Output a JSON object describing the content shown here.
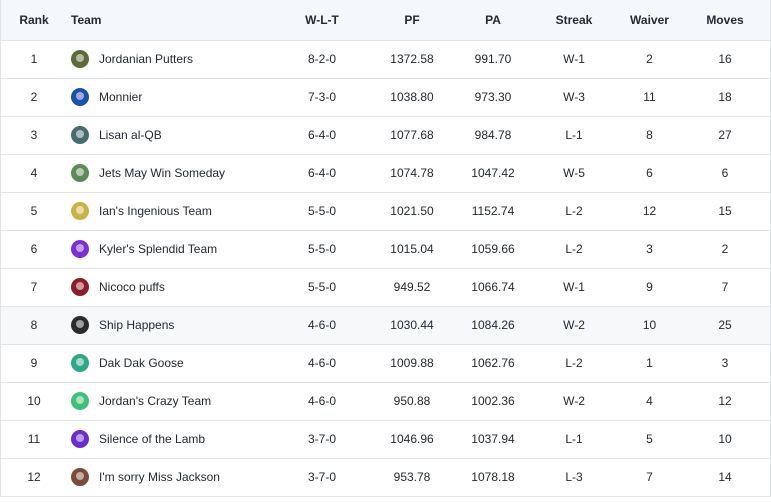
{
  "headers": {
    "rank": "Rank",
    "team": "Team",
    "wlt": "W-L-T",
    "pf": "PF",
    "pa": "PA",
    "streak": "Streak",
    "waiver": "Waiver",
    "moves": "Moves"
  },
  "rows": [
    {
      "rank": "1",
      "team": "Jordanian Putters",
      "wlt": "8-2-0",
      "pf": "1372.58",
      "pa": "991.70",
      "streak": "W-1",
      "waiver": "2",
      "moves": "16",
      "avatar_color": "#5b6b3a"
    },
    {
      "rank": "2",
      "team": "Monnier",
      "wlt": "7-3-0",
      "pf": "1038.80",
      "pa": "973.30",
      "streak": "W-3",
      "waiver": "11",
      "moves": "18",
      "avatar_color": "#1f4fa8"
    },
    {
      "rank": "3",
      "team": "Lisan al-QB",
      "wlt": "6-4-0",
      "pf": "1077.68",
      "pa": "984.78",
      "streak": "L-1",
      "waiver": "8",
      "moves": "27",
      "avatar_color": "#4a6a6e"
    },
    {
      "rank": "4",
      "team": "Jets May Win Someday",
      "wlt": "6-4-0",
      "pf": "1074.78",
      "pa": "1047.42",
      "streak": "W-5",
      "waiver": "6",
      "moves": "6",
      "avatar_color": "#5e8a5a"
    },
    {
      "rank": "5",
      "team": "Ian's Ingenious Team",
      "wlt": "5-5-0",
      "pf": "1021.50",
      "pa": "1152.74",
      "streak": "L-2",
      "waiver": "12",
      "moves": "15",
      "avatar_color": "#c9b347"
    },
    {
      "rank": "6",
      "team": "Kyler's Splendid Team",
      "wlt": "5-5-0",
      "pf": "1015.04",
      "pa": "1059.66",
      "streak": "L-2",
      "waiver": "3",
      "moves": "2",
      "avatar_color": "#7b2fd0"
    },
    {
      "rank": "7",
      "team": "Nicoco puffs",
      "wlt": "5-5-0",
      "pf": "949.52",
      "pa": "1066.74",
      "streak": "W-1",
      "waiver": "9",
      "moves": "7",
      "avatar_color": "#8a1f2a"
    },
    {
      "rank": "8",
      "team": "Ship Happens",
      "wlt": "4-6-0",
      "pf": "1030.44",
      "pa": "1084.26",
      "streak": "W-2",
      "waiver": "10",
      "moves": "25",
      "avatar_color": "#2b2b2b"
    },
    {
      "rank": "9",
      "team": "Dak Dak Goose",
      "wlt": "4-6-0",
      "pf": "1009.88",
      "pa": "1062.76",
      "streak": "L-2",
      "waiver": "1",
      "moves": "3",
      "avatar_color": "#2fa88a"
    },
    {
      "rank": "10",
      "team": "Jordan's Crazy Team",
      "wlt": "4-6-0",
      "pf": "950.88",
      "pa": "1002.36",
      "streak": "W-2",
      "waiver": "4",
      "moves": "12",
      "avatar_color": "#3fbf7a"
    },
    {
      "rank": "11",
      "team": "Silence of the Lamb",
      "wlt": "3-7-0",
      "pf": "1046.96",
      "pa": "1037.94",
      "streak": "L-1",
      "waiver": "5",
      "moves": "10",
      "avatar_color": "#6a2fc8"
    },
    {
      "rank": "12",
      "team": "I'm sorry Miss Jackson",
      "wlt": "3-7-0",
      "pf": "953.78",
      "pa": "1078.18",
      "streak": "L-3",
      "waiver": "7",
      "moves": "14",
      "avatar_color": "#7a4a3a"
    }
  ]
}
